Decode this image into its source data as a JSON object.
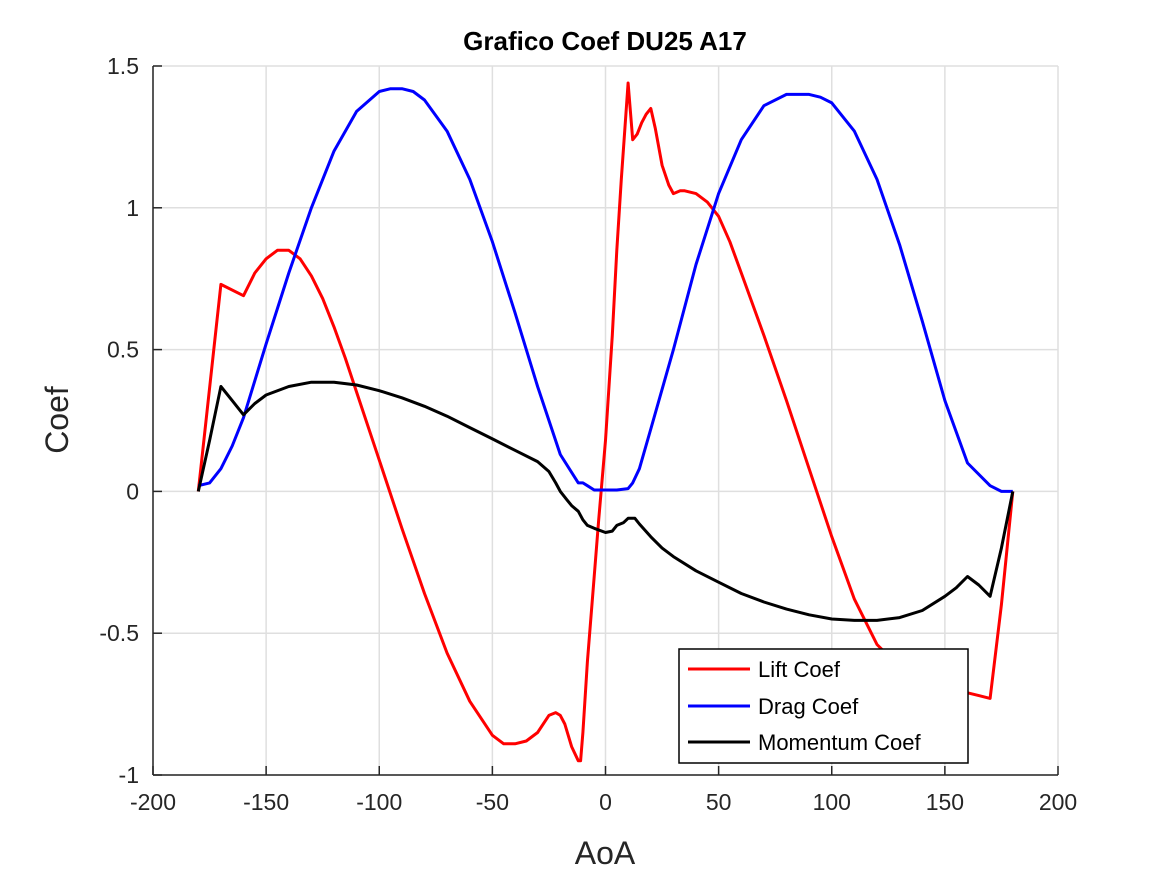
{
  "chart_data": {
    "type": "line",
    "title": "Grafico Coef DU25 A17",
    "xlabel": "AoA",
    "ylabel": "Coef",
    "xlim": [
      -200,
      200
    ],
    "ylim": [
      -1,
      1.5
    ],
    "xticks": [
      -200,
      -150,
      -100,
      -50,
      0,
      50,
      100,
      150,
      200
    ],
    "xtick_labels": [
      "-200",
      "-150",
      "-100",
      "-50",
      "0",
      "50",
      "100",
      "150",
      "200"
    ],
    "yticks": [
      -1,
      -0.5,
      0,
      0.5,
      1,
      1.5
    ],
    "ytick_labels": [
      "-1",
      "-0.5",
      "0",
      "0.5",
      "1",
      "1.5"
    ],
    "grid": true,
    "legend_position": "bottom-right",
    "series": [
      {
        "name": "Lift Coef",
        "color": "#ff0000",
        "x": [
          -180,
          -170,
          -160,
          -155,
          -150,
          -145,
          -140,
          -135,
          -130,
          -125,
          -120,
          -115,
          -110,
          -100,
          -90,
          -80,
          -70,
          -60,
          -50,
          -45,
          -40,
          -35,
          -30,
          -25,
          -22,
          -20,
          -18,
          -15,
          -12,
          -11,
          -10,
          -8,
          -5,
          -3,
          0,
          3,
          5,
          7,
          9,
          10,
          12,
          14,
          16,
          18,
          20,
          22,
          25,
          28,
          30,
          33,
          35,
          40,
          45,
          50,
          55,
          60,
          70,
          80,
          90,
          100,
          110,
          120,
          130,
          140,
          150,
          160,
          165,
          170,
          175,
          180
        ],
        "y": [
          0,
          0.73,
          0.69,
          0.77,
          0.82,
          0.85,
          0.85,
          0.82,
          0.76,
          0.68,
          0.58,
          0.47,
          0.35,
          0.11,
          -0.13,
          -0.36,
          -0.57,
          -0.74,
          -0.86,
          -0.89,
          -0.89,
          -0.88,
          -0.85,
          -0.79,
          -0.78,
          -0.79,
          -0.82,
          -0.9,
          -0.95,
          -0.95,
          -0.85,
          -0.6,
          -0.3,
          -0.1,
          0.18,
          0.55,
          0.85,
          1.1,
          1.33,
          1.44,
          1.24,
          1.26,
          1.3,
          1.33,
          1.35,
          1.28,
          1.15,
          1.08,
          1.05,
          1.06,
          1.06,
          1.05,
          1.02,
          0.97,
          0.88,
          0.77,
          0.55,
          0.32,
          0.08,
          -0.16,
          -0.38,
          -0.54,
          -0.62,
          -0.67,
          -0.69,
          -0.71,
          -0.72,
          -0.73,
          -0.4,
          0
        ]
      },
      {
        "name": "Drag Coef",
        "color": "#0000ff",
        "x": [
          -180,
          -175,
          -170,
          -165,
          -160,
          -150,
          -140,
          -130,
          -120,
          -110,
          -100,
          -95,
          -90,
          -85,
          -80,
          -70,
          -60,
          -50,
          -40,
          -30,
          -20,
          -12,
          -10,
          -8,
          -5,
          -2,
          0,
          5,
          10,
          12,
          15,
          20,
          30,
          40,
          50,
          60,
          70,
          80,
          90,
          95,
          100,
          110,
          120,
          130,
          140,
          150,
          160,
          170,
          175,
          180
        ],
        "y": [
          0.02,
          0.03,
          0.08,
          0.16,
          0.26,
          0.52,
          0.77,
          1.0,
          1.2,
          1.34,
          1.41,
          1.42,
          1.42,
          1.41,
          1.38,
          1.27,
          1.1,
          0.88,
          0.63,
          0.37,
          0.13,
          0.03,
          0.03,
          0.02,
          0.005,
          0.005,
          0.005,
          0.005,
          0.01,
          0.03,
          0.08,
          0.22,
          0.5,
          0.8,
          1.05,
          1.24,
          1.36,
          1.4,
          1.4,
          1.39,
          1.37,
          1.27,
          1.1,
          0.87,
          0.6,
          0.32,
          0.1,
          0.02,
          0.0,
          0.0
        ]
      },
      {
        "name": "Momentum Coef",
        "color": "#000000",
        "x": [
          -180,
          -175,
          -170,
          -165,
          -160,
          -155,
          -150,
          -140,
          -130,
          -120,
          -110,
          -100,
          -90,
          -80,
          -70,
          -60,
          -50,
          -40,
          -30,
          -25,
          -22,
          -20,
          -17,
          -15,
          -12,
          -10,
          -8,
          -5,
          0,
          3,
          5,
          8,
          10,
          13,
          15,
          20,
          25,
          30,
          40,
          50,
          60,
          70,
          80,
          90,
          100,
          110,
          120,
          130,
          140,
          150,
          155,
          160,
          165,
          170,
          175,
          180
        ],
        "y": [
          0,
          0.18,
          0.37,
          0.32,
          0.27,
          0.31,
          0.34,
          0.37,
          0.385,
          0.385,
          0.375,
          0.355,
          0.33,
          0.3,
          0.265,
          0.225,
          0.185,
          0.145,
          0.105,
          0.07,
          0.03,
          0.0,
          -0.03,
          -0.05,
          -0.07,
          -0.1,
          -0.12,
          -0.13,
          -0.145,
          -0.14,
          -0.12,
          -0.11,
          -0.095,
          -0.095,
          -0.115,
          -0.16,
          -0.2,
          -0.23,
          -0.28,
          -0.32,
          -0.36,
          -0.39,
          -0.415,
          -0.435,
          -0.45,
          -0.455,
          -0.455,
          -0.445,
          -0.42,
          -0.37,
          -0.34,
          -0.3,
          -0.33,
          -0.37,
          -0.2,
          0
        ]
      }
    ]
  }
}
